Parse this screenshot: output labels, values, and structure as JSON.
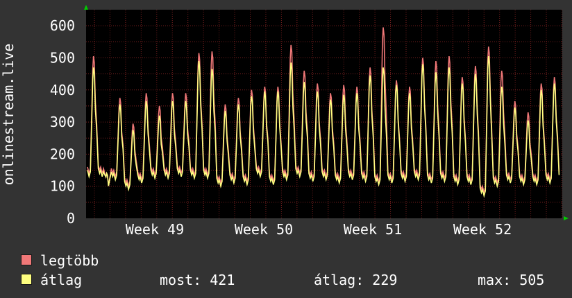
{
  "chart_data": {
    "type": "line",
    "ylabel": "onlinestream.live",
    "ylim": [
      0,
      650
    ],
    "yticks": [
      0,
      100,
      200,
      300,
      400,
      500,
      600
    ],
    "xtick_labels": [
      "Week 49",
      "Week 50",
      "Week 51",
      "Week 52"
    ],
    "grid": true,
    "series": [
      {
        "name": "legtöbb",
        "color": "#f07878"
      },
      {
        "name": "átlag",
        "color": "#ffff80"
      }
    ],
    "daily_peaks": {
      "max": [
        505,
        140,
        375,
        295,
        390,
        350,
        390,
        390,
        515,
        520,
        355,
        375,
        400,
        410,
        410,
        540,
        460,
        420,
        390,
        415,
        410,
        470,
        595,
        430,
        410,
        500,
        490,
        505,
        440,
        475,
        535,
        460,
        365,
        330,
        420,
        440
      ],
      "avg": [
        470,
        140,
        355,
        275,
        365,
        320,
        365,
        365,
        490,
        465,
        335,
        355,
        380,
        395,
        395,
        485,
        425,
        395,
        370,
        385,
        390,
        445,
        470,
        415,
        390,
        480,
        455,
        470,
        420,
        450,
        505,
        410,
        345,
        305,
        400,
        420
      ]
    },
    "daily_troughs": [
      130,
      130,
      120,
      90,
      110,
      125,
      125,
      130,
      125,
      125,
      100,
      110,
      105,
      130,
      105,
      120,
      130,
      115,
      120,
      110,
      120,
      115,
      105,
      110,
      115,
      120,
      110,
      115,
      105,
      105,
      70,
      100,
      110,
      105,
      105,
      110
    ],
    "stats": {
      "legend": {
        "most_label": "most:",
        "most": 421,
        "avg_label": "átlag:",
        "avg": 229,
        "max_label": "max:",
        "max": 505
      }
    }
  },
  "colors": {
    "background": "#333333",
    "plot_background": "#000000",
    "grid": "#7a2020",
    "axis_arrow": "#00cc00"
  }
}
